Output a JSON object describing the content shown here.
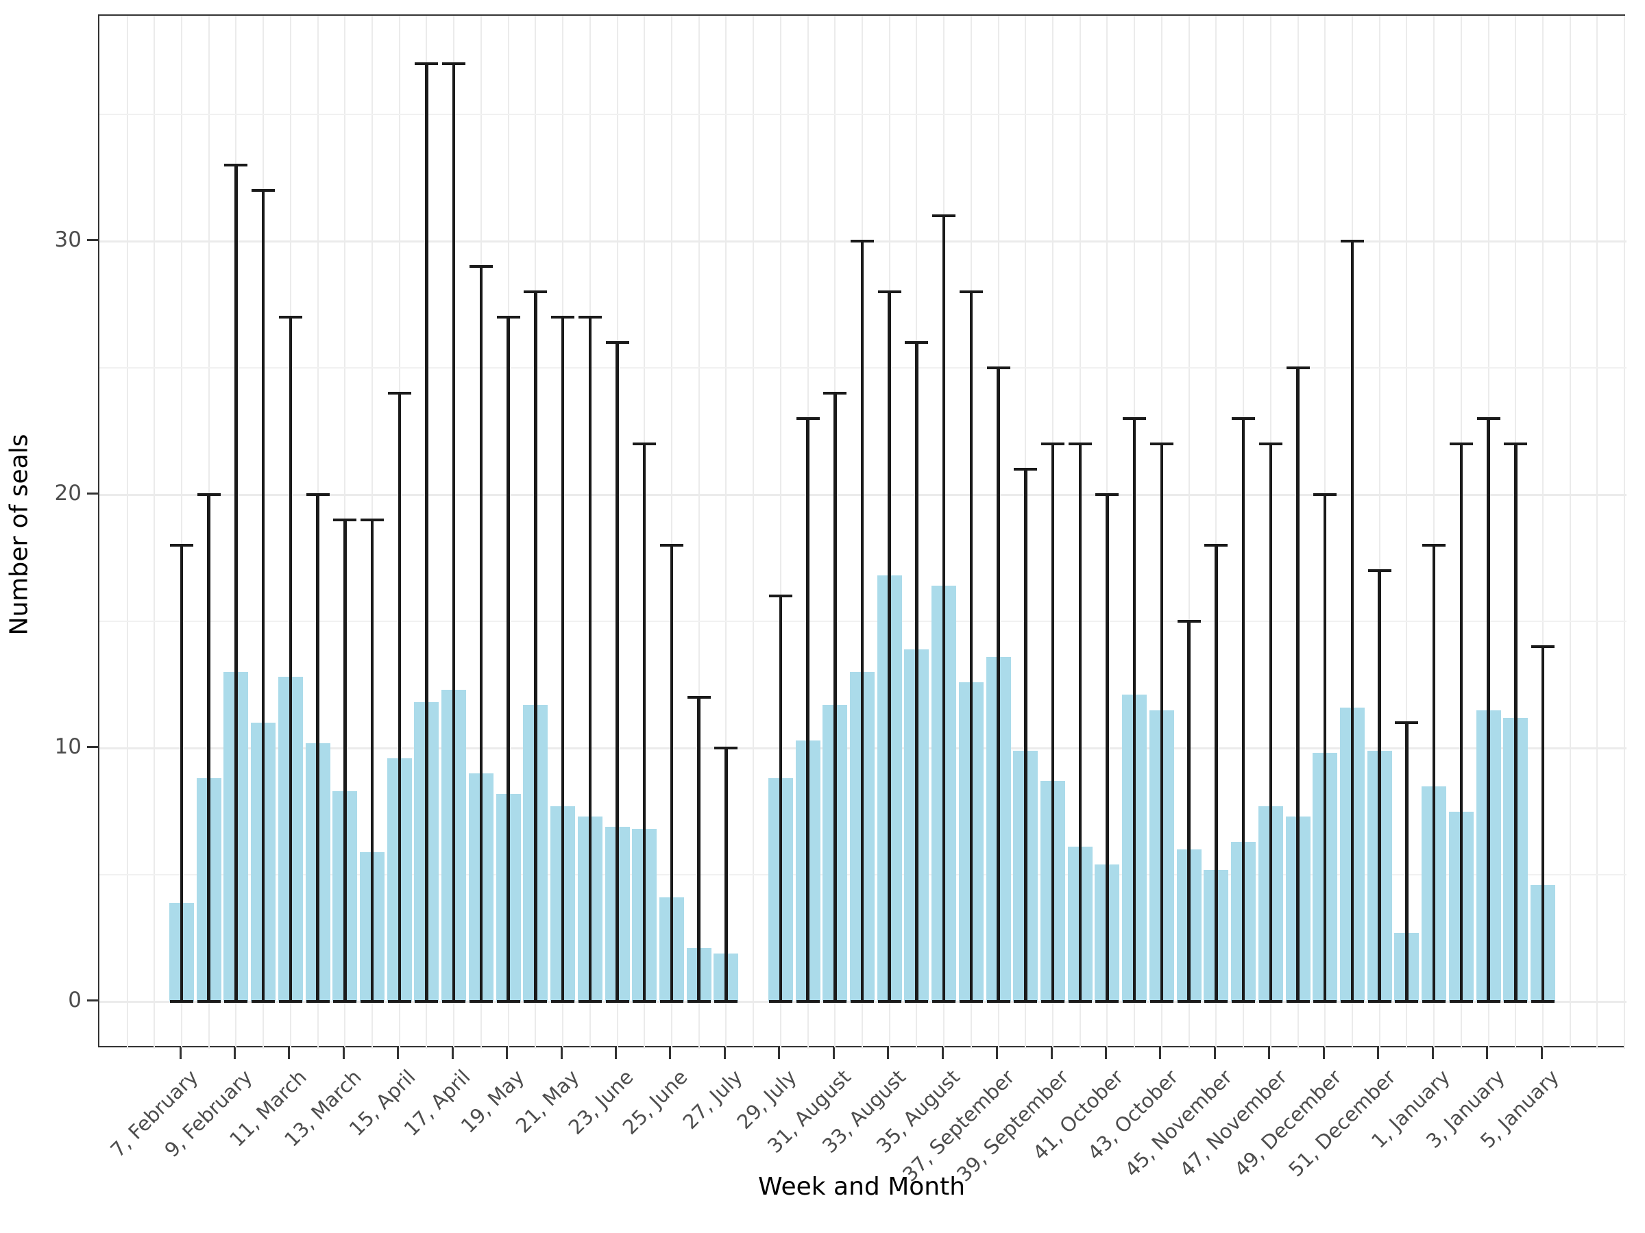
{
  "figure": {
    "xlabel": "Week and Month",
    "ylabel": "Number of seals"
  },
  "y_axis": {
    "tick_labels": [
      "0",
      "10",
      "20",
      "30"
    ],
    "tick_values": [
      0,
      10,
      20,
      30
    ],
    "minor_values": [
      5,
      15,
      25,
      35
    ]
  },
  "chart_data": {
    "type": "bar",
    "title": "",
    "xlabel": "Week and Month",
    "ylabel": "Number of seals",
    "ylim": [
      -1.9,
      38.9
    ],
    "yticks": [
      0,
      10,
      20,
      30
    ],
    "grid": "on",
    "legend": "none",
    "bar_color": "#ABDBEA",
    "errorbar_color": "#1a1a1a",
    "note": "Each slot = one week; bars are mean number of seals, vertical lines with caps run from 0 to the weekly maximum; week 28 has no data.",
    "slots": [
      {
        "week": 7,
        "tick_label": "7, February",
        "mean": 3.9,
        "max": 18
      },
      {
        "week": 8,
        "tick_label": null,
        "mean": 8.8,
        "max": 20
      },
      {
        "week": 9,
        "tick_label": "9, February",
        "mean": 13.0,
        "max": 33
      },
      {
        "week": 10,
        "tick_label": null,
        "mean": 11.0,
        "max": 32
      },
      {
        "week": 11,
        "tick_label": "11, March",
        "mean": 12.8,
        "max": 27
      },
      {
        "week": 12,
        "tick_label": null,
        "mean": 10.2,
        "max": 20
      },
      {
        "week": 13,
        "tick_label": "13, March",
        "mean": 8.3,
        "max": 19
      },
      {
        "week": 14,
        "tick_label": null,
        "mean": 5.9,
        "max": 19
      },
      {
        "week": 15,
        "tick_label": "15, April",
        "mean": 9.6,
        "max": 24
      },
      {
        "week": 16,
        "tick_label": null,
        "mean": 11.8,
        "max": 37
      },
      {
        "week": 17,
        "tick_label": "17, April",
        "mean": 12.3,
        "max": 37
      },
      {
        "week": 18,
        "tick_label": null,
        "mean": 9.0,
        "max": 29
      },
      {
        "week": 19,
        "tick_label": "19, May",
        "mean": 8.2,
        "max": 27
      },
      {
        "week": 20,
        "tick_label": null,
        "mean": 11.7,
        "max": 28
      },
      {
        "week": 21,
        "tick_label": "21, May",
        "mean": 7.7,
        "max": 27
      },
      {
        "week": 22,
        "tick_label": null,
        "mean": 7.3,
        "max": 27
      },
      {
        "week": 23,
        "tick_label": "23, June",
        "mean": 6.9,
        "max": 26
      },
      {
        "week": 24,
        "tick_label": null,
        "mean": 6.8,
        "max": 22
      },
      {
        "week": 25,
        "tick_label": "25, June",
        "mean": 4.1,
        "max": 18
      },
      {
        "week": 26,
        "tick_label": null,
        "mean": 2.1,
        "max": 12
      },
      {
        "week": 27,
        "tick_label": "27, July",
        "mean": 1.9,
        "max": 10
      },
      {
        "week": 28,
        "tick_label": null,
        "mean": null,
        "max": null
      },
      {
        "week": 29,
        "tick_label": "29, July",
        "mean": 8.8,
        "max": 16
      },
      {
        "week": 30,
        "tick_label": null,
        "mean": 10.3,
        "max": 23
      },
      {
        "week": 31,
        "tick_label": "31, August",
        "mean": 11.7,
        "max": 24
      },
      {
        "week": 32,
        "tick_label": null,
        "mean": 13.0,
        "max": 30
      },
      {
        "week": 33,
        "tick_label": "33, August",
        "mean": 16.8,
        "max": 28
      },
      {
        "week": 34,
        "tick_label": null,
        "mean": 13.9,
        "max": 26
      },
      {
        "week": 35,
        "tick_label": "35, August",
        "mean": 16.4,
        "max": 31
      },
      {
        "week": 36,
        "tick_label": null,
        "mean": 12.6,
        "max": 28
      },
      {
        "week": 37,
        "tick_label": "37, September",
        "mean": 13.6,
        "max": 25
      },
      {
        "week": 38,
        "tick_label": null,
        "mean": 9.9,
        "max": 21
      },
      {
        "week": 39,
        "tick_label": "39, September",
        "mean": 8.7,
        "max": 22
      },
      {
        "week": 40,
        "tick_label": null,
        "mean": 6.1,
        "max": 22
      },
      {
        "week": 41,
        "tick_label": "41, October",
        "mean": 5.4,
        "max": 20
      },
      {
        "week": 42,
        "tick_label": null,
        "mean": 12.1,
        "max": 23
      },
      {
        "week": 43,
        "tick_label": "43, October",
        "mean": 11.5,
        "max": 22
      },
      {
        "week": 44,
        "tick_label": null,
        "mean": 6.0,
        "max": 15
      },
      {
        "week": 45,
        "tick_label": "45, November",
        "mean": 5.2,
        "max": 18
      },
      {
        "week": 46,
        "tick_label": null,
        "mean": 6.3,
        "max": 23
      },
      {
        "week": 47,
        "tick_label": "47, November",
        "mean": 7.7,
        "max": 22
      },
      {
        "week": 48,
        "tick_label": null,
        "mean": 7.3,
        "max": 25
      },
      {
        "week": 49,
        "tick_label": "49, December",
        "mean": 9.8,
        "max": 20
      },
      {
        "week": 50,
        "tick_label": null,
        "mean": 11.6,
        "max": 30
      },
      {
        "week": 51,
        "tick_label": "51, December",
        "mean": 9.9,
        "max": 17
      },
      {
        "week": 52,
        "tick_label": null,
        "mean": 2.7,
        "max": 11
      },
      {
        "week": 1,
        "tick_label": "1, January",
        "mean": 8.5,
        "max": 18
      },
      {
        "week": 2,
        "tick_label": null,
        "mean": 7.5,
        "max": 22
      },
      {
        "week": 3,
        "tick_label": "3, January",
        "mean": 11.5,
        "max": 23
      },
      {
        "week": 4,
        "tick_label": null,
        "mean": 11.2,
        "max": 22
      },
      {
        "week": 5,
        "tick_label": "5, January",
        "mean": 4.6,
        "max": 14
      }
    ]
  }
}
